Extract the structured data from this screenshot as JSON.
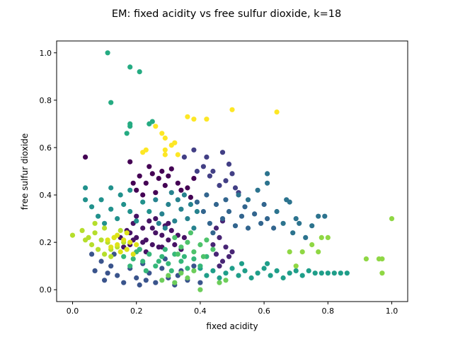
{
  "chart_data": {
    "type": "scatter",
    "title": "EM: fixed acidity vs free sulfur dioxide, k=18",
    "xlabel": "fixed acidity",
    "ylabel": "free sulfur dioxide",
    "xlim": [
      -0.05,
      1.05
    ],
    "ylim": [
      -0.05,
      1.05
    ],
    "xticks": [
      "0.0",
      "0.2",
      "0.4",
      "0.6",
      "0.8",
      "1.0"
    ],
    "yticks": [
      "0.0",
      "0.2",
      "0.4",
      "0.6",
      "0.8",
      "1.0"
    ],
    "grid": false,
    "legend": "none",
    "colormap": "viridis",
    "series": [
      {
        "color": "#440154",
        "points": [
          [
            0.04,
            0.56
          ],
          [
            0.18,
            0.54
          ],
          [
            0.19,
            0.45
          ],
          [
            0.21,
            0.48
          ],
          [
            0.23,
            0.45
          ],
          [
            0.25,
            0.49
          ],
          [
            0.27,
            0.47
          ],
          [
            0.29,
            0.44
          ],
          [
            0.3,
            0.48
          ],
          [
            0.31,
            0.51
          ],
          [
            0.33,
            0.45
          ],
          [
            0.34,
            0.42
          ],
          [
            0.36,
            0.43
          ],
          [
            0.37,
            0.39
          ],
          [
            0.38,
            0.47
          ],
          [
            0.2,
            0.42
          ],
          [
            0.26,
            0.41
          ],
          [
            0.28,
            0.5
          ],
          [
            0.22,
            0.4
          ],
          [
            0.24,
            0.52
          ]
        ]
      },
      {
        "color": "#471365",
        "points": [
          [
            0.15,
            0.22
          ],
          [
            0.17,
            0.25
          ],
          [
            0.18,
            0.19
          ],
          [
            0.19,
            0.28
          ],
          [
            0.2,
            0.22
          ],
          [
            0.21,
            0.17
          ],
          [
            0.22,
            0.26
          ],
          [
            0.23,
            0.21
          ],
          [
            0.24,
            0.29
          ],
          [
            0.25,
            0.19
          ],
          [
            0.26,
            0.24
          ],
          [
            0.27,
            0.18
          ],
          [
            0.28,
            0.23
          ],
          [
            0.29,
            0.27
          ],
          [
            0.3,
            0.21
          ],
          [
            0.31,
            0.25
          ],
          [
            0.32,
            0.19
          ],
          [
            0.33,
            0.23
          ],
          [
            0.34,
            0.17
          ],
          [
            0.2,
            0.31
          ],
          [
            0.23,
            0.16
          ],
          [
            0.26,
            0.3
          ],
          [
            0.18,
            0.24
          ],
          [
            0.22,
            0.2
          ],
          [
            0.25,
            0.26
          ],
          [
            0.28,
            0.18
          ],
          [
            0.3,
            0.28
          ],
          [
            0.16,
            0.18
          ],
          [
            0.35,
            0.22
          ],
          [
            0.19,
            0.21
          ]
        ]
      },
      {
        "color": "#482575",
        "points": [
          [
            0.44,
            0.19
          ],
          [
            0.45,
            0.15
          ],
          [
            0.46,
            0.22
          ],
          [
            0.47,
            0.12
          ],
          [
            0.48,
            0.18
          ],
          [
            0.49,
            0.14
          ],
          [
            0.45,
            0.26
          ],
          [
            0.47,
            0.29
          ],
          [
            0.5,
            0.16
          ],
          [
            0.46,
            0.1
          ]
        ]
      },
      {
        "color": "#423f85",
        "points": [
          [
            0.35,
            0.56
          ],
          [
            0.38,
            0.59
          ],
          [
            0.41,
            0.52
          ],
          [
            0.42,
            0.56
          ],
          [
            0.44,
            0.5
          ],
          [
            0.47,
            0.58
          ],
          [
            0.48,
            0.46
          ],
          [
            0.5,
            0.49
          ],
          [
            0.51,
            0.43
          ],
          [
            0.52,
            0.41
          ],
          [
            0.46,
            0.44
          ],
          [
            0.49,
            0.53
          ],
          [
            0.43,
            0.48
          ],
          [
            0.39,
            0.5
          ]
        ]
      },
      {
        "color": "#3a548c",
        "points": [
          [
            0.06,
            0.15
          ],
          [
            0.07,
            0.08
          ],
          [
            0.09,
            0.12
          ],
          [
            0.1,
            0.04
          ],
          [
            0.12,
            0.1
          ],
          [
            0.14,
            0.06
          ],
          [
            0.16,
            0.03
          ],
          [
            0.18,
            0.09
          ],
          [
            0.2,
            0.05
          ],
          [
            0.22,
            0.11
          ],
          [
            0.24,
            0.07
          ],
          [
            0.26,
            0.03
          ],
          [
            0.28,
            0.09
          ],
          [
            0.3,
            0.05
          ],
          [
            0.32,
            0.02
          ],
          [
            0.34,
            0.08
          ],
          [
            0.36,
            0.04
          ],
          [
            0.38,
            0.1
          ],
          [
            0.13,
            0.15
          ],
          [
            0.21,
            0.02
          ],
          [
            0.29,
            0.13
          ],
          [
            0.11,
            0.07
          ],
          [
            0.23,
            0.04
          ],
          [
            0.33,
            0.06
          ],
          [
            0.4,
            0.03
          ]
        ]
      },
      {
        "color": "#32658e",
        "points": [
          [
            0.39,
            0.37
          ],
          [
            0.41,
            0.33
          ],
          [
            0.43,
            0.28
          ],
          [
            0.45,
            0.36
          ],
          [
            0.47,
            0.3
          ],
          [
            0.49,
            0.33
          ],
          [
            0.51,
            0.27
          ],
          [
            0.53,
            0.31
          ],
          [
            0.55,
            0.26
          ],
          [
            0.57,
            0.32
          ],
          [
            0.59,
            0.28
          ],
          [
            0.61,
            0.3
          ],
          [
            0.63,
            0.26
          ],
          [
            0.42,
            0.4
          ],
          [
            0.48,
            0.38
          ],
          [
            0.54,
            0.35
          ],
          [
            0.6,
            0.36
          ],
          [
            0.44,
            0.24
          ]
        ]
      },
      {
        "color": "#2c738e",
        "points": [
          [
            0.52,
            0.4
          ],
          [
            0.55,
            0.38
          ],
          [
            0.58,
            0.42
          ],
          [
            0.61,
            0.45
          ],
          [
            0.61,
            0.49
          ],
          [
            0.64,
            0.33
          ],
          [
            0.66,
            0.28
          ],
          [
            0.68,
            0.37
          ],
          [
            0.69,
            0.24
          ],
          [
            0.71,
            0.28
          ],
          [
            0.73,
            0.22
          ],
          [
            0.75,
            0.27
          ],
          [
            0.77,
            0.31
          ],
          [
            0.79,
            0.31
          ],
          [
            0.67,
            0.38
          ],
          [
            0.7,
            0.3
          ]
        ]
      },
      {
        "color": "#26828e",
        "points": [
          [
            0.26,
            0.38
          ],
          [
            0.28,
            0.32
          ],
          [
            0.3,
            0.36
          ],
          [
            0.32,
            0.29
          ],
          [
            0.34,
            0.34
          ],
          [
            0.36,
            0.3
          ],
          [
            0.37,
            0.36
          ],
          [
            0.38,
            0.26
          ],
          [
            0.35,
            0.4
          ],
          [
            0.31,
            0.41
          ],
          [
            0.27,
            0.28
          ],
          [
            0.39,
            0.33
          ],
          [
            0.33,
            0.38
          ],
          [
            0.29,
            0.26
          ]
        ]
      },
      {
        "color": "#21918c",
        "points": [
          [
            0.04,
            0.43
          ],
          [
            0.04,
            0.38
          ],
          [
            0.06,
            0.35
          ],
          [
            0.08,
            0.31
          ],
          [
            0.1,
            0.28
          ],
          [
            0.12,
            0.34
          ],
          [
            0.12,
            0.43
          ],
          [
            0.14,
            0.3
          ],
          [
            0.16,
            0.36
          ],
          [
            0.18,
            0.33
          ],
          [
            0.18,
            0.42
          ],
          [
            0.2,
            0.29
          ],
          [
            0.22,
            0.37
          ],
          [
            0.24,
            0.33
          ],
          [
            0.15,
            0.4
          ],
          [
            0.09,
            0.38
          ]
        ]
      },
      {
        "color": "#1f9e89",
        "points": [
          [
            0.4,
            0.09
          ],
          [
            0.42,
            0.06
          ],
          [
            0.44,
            0.08
          ],
          [
            0.46,
            0.05
          ],
          [
            0.48,
            0.07
          ],
          [
            0.5,
            0.09
          ],
          [
            0.52,
            0.06
          ],
          [
            0.54,
            0.08
          ],
          [
            0.56,
            0.05
          ],
          [
            0.58,
            0.07
          ],
          [
            0.6,
            0.09
          ],
          [
            0.62,
            0.06
          ],
          [
            0.64,
            0.08
          ],
          [
            0.66,
            0.05
          ],
          [
            0.68,
            0.07
          ],
          [
            0.7,
            0.08
          ],
          [
            0.72,
            0.06
          ],
          [
            0.74,
            0.08
          ],
          [
            0.76,
            0.07
          ],
          [
            0.78,
            0.07
          ],
          [
            0.8,
            0.07
          ],
          [
            0.82,
            0.07
          ],
          [
            0.84,
            0.07
          ],
          [
            0.86,
            0.07
          ],
          [
            0.53,
            0.11
          ],
          [
            0.61,
            0.11
          ]
        ]
      },
      {
        "color": "#25ab82",
        "points": [
          [
            0.11,
            1.0
          ],
          [
            0.18,
            0.94
          ],
          [
            0.21,
            0.92
          ],
          [
            0.12,
            0.79
          ],
          [
            0.18,
            0.7
          ],
          [
            0.18,
            0.69
          ],
          [
            0.17,
            0.66
          ],
          [
            0.24,
            0.7
          ],
          [
            0.25,
            0.71
          ]
        ]
      },
      {
        "color": "#35b779",
        "points": [
          [
            0.16,
            0.14
          ],
          [
            0.18,
            0.1
          ],
          [
            0.2,
            0.16
          ],
          [
            0.22,
            0.12
          ],
          [
            0.24,
            0.15
          ],
          [
            0.26,
            0.1
          ],
          [
            0.28,
            0.14
          ],
          [
            0.3,
            0.11
          ],
          [
            0.32,
            0.15
          ],
          [
            0.34,
            0.12
          ],
          [
            0.36,
            0.09
          ],
          [
            0.38,
            0.13
          ],
          [
            0.4,
            0.1
          ],
          [
            0.42,
            0.14
          ],
          [
            0.19,
            0.13
          ],
          [
            0.23,
            0.08
          ],
          [
            0.27,
            0.12
          ],
          [
            0.31,
            0.08
          ],
          [
            0.35,
            0.14
          ],
          [
            0.29,
            0.17
          ],
          [
            0.21,
            0.17
          ]
        ]
      },
      {
        "color": "#4ec36b",
        "points": [
          [
            0.32,
            0.22
          ],
          [
            0.34,
            0.18
          ],
          [
            0.36,
            0.2
          ],
          [
            0.38,
            0.16
          ],
          [
            0.4,
            0.19
          ],
          [
            0.42,
            0.21
          ],
          [
            0.44,
            0.17
          ],
          [
            0.37,
            0.24
          ],
          [
            0.33,
            0.15
          ],
          [
            0.41,
            0.14
          ]
        ]
      },
      {
        "color": "#6ccd5a",
        "points": [
          [
            0.3,
            0.06
          ],
          [
            0.32,
            0.03
          ],
          [
            0.34,
            0.07
          ],
          [
            0.36,
            0.05
          ],
          [
            0.38,
            0.08
          ],
          [
            0.4,
            0.0
          ],
          [
            0.46,
            0.03
          ],
          [
            0.48,
            0.04
          ],
          [
            0.28,
            0.04
          ]
        ]
      },
      {
        "color": "#8fd744",
        "points": [
          [
            0.68,
            0.16
          ],
          [
            0.7,
            0.1
          ],
          [
            0.72,
            0.16
          ],
          [
            0.75,
            0.19
          ],
          [
            0.77,
            0.16
          ],
          [
            0.78,
            0.22
          ],
          [
            0.8,
            0.22
          ],
          [
            0.92,
            0.13
          ],
          [
            0.96,
            0.13
          ],
          [
            0.97,
            0.13
          ],
          [
            0.97,
            0.07
          ],
          [
            1.0,
            0.3
          ]
        ]
      },
      {
        "color": "#b5de2b",
        "points": [
          [
            0.0,
            0.23
          ],
          [
            0.03,
            0.25
          ],
          [
            0.05,
            0.22
          ],
          [
            0.06,
            0.19
          ],
          [
            0.07,
            0.24
          ],
          [
            0.08,
            0.17
          ],
          [
            0.09,
            0.21
          ],
          [
            0.1,
            0.15
          ],
          [
            0.11,
            0.2
          ],
          [
            0.12,
            0.17
          ],
          [
            0.13,
            0.22
          ],
          [
            0.14,
            0.18
          ],
          [
            0.15,
            0.25
          ],
          [
            0.16,
            0.2
          ],
          [
            0.04,
            0.21
          ],
          [
            0.1,
            0.26
          ],
          [
            0.07,
            0.28
          ],
          [
            0.12,
            0.14
          ]
        ]
      },
      {
        "color": "#dde318",
        "points": [
          [
            0.11,
            0.21
          ],
          [
            0.12,
            0.18
          ],
          [
            0.13,
            0.22
          ],
          [
            0.14,
            0.19
          ],
          [
            0.15,
            0.16
          ],
          [
            0.16,
            0.21
          ],
          [
            0.17,
            0.17
          ],
          [
            0.18,
            0.2
          ],
          [
            0.19,
            0.15
          ],
          [
            0.2,
            0.19
          ],
          [
            0.14,
            0.23
          ],
          [
            0.17,
            0.24
          ]
        ]
      },
      {
        "color": "#fde725",
        "points": [
          [
            0.22,
            0.58
          ],
          [
            0.23,
            0.59
          ],
          [
            0.26,
            0.69
          ],
          [
            0.28,
            0.66
          ],
          [
            0.29,
            0.64
          ],
          [
            0.29,
            0.59
          ],
          [
            0.29,
            0.57
          ],
          [
            0.31,
            0.61
          ],
          [
            0.32,
            0.62
          ],
          [
            0.33,
            0.57
          ],
          [
            0.36,
            0.73
          ],
          [
            0.38,
            0.72
          ],
          [
            0.42,
            0.72
          ],
          [
            0.5,
            0.76
          ],
          [
            0.64,
            0.75
          ]
        ]
      }
    ]
  }
}
